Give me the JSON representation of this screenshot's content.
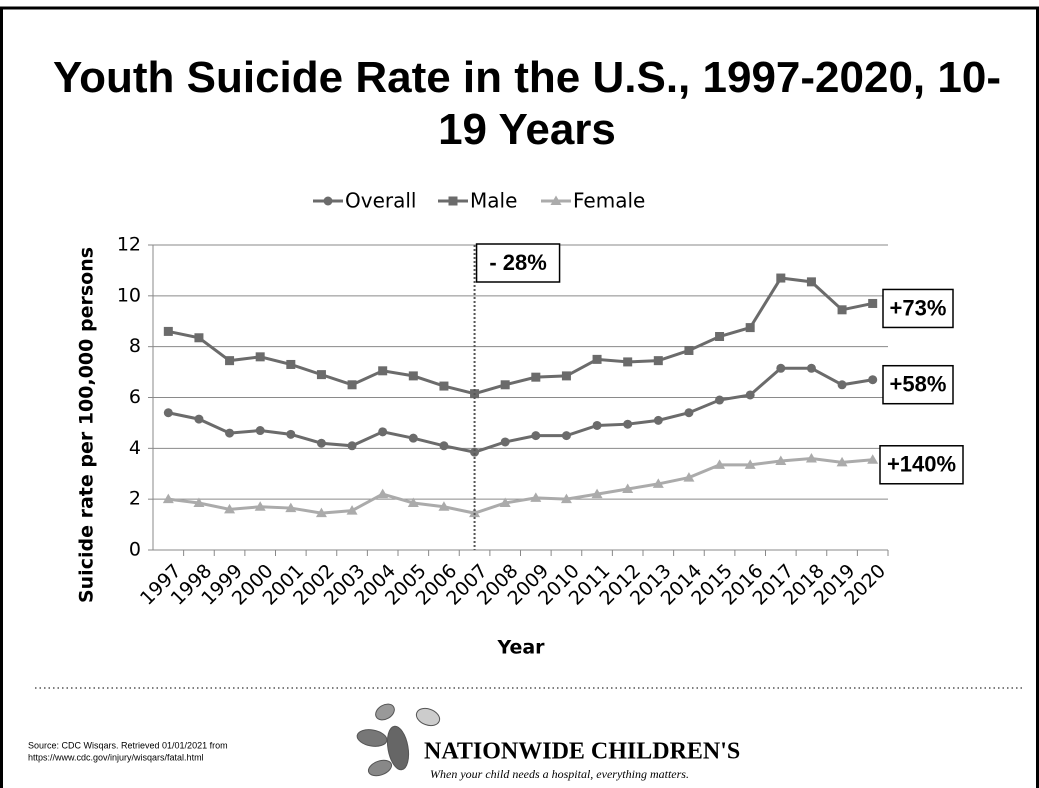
{
  "chart_data": {
    "type": "line",
    "title": "Youth Suicide Rate in the U.S., 1997-2020, 10-19 Years",
    "x_label": "Year",
    "y_label": "Suicide rate per 100,000 persons",
    "categories": [
      "1997",
      "1998",
      "1999",
      "2000",
      "2001",
      "2002",
      "2003",
      "2004",
      "2005",
      "2006",
      "2007",
      "2008",
      "2009",
      "2010",
      "2011",
      "2012",
      "2013",
      "2014",
      "2015",
      "2016",
      "2017",
      "2018",
      "2019",
      "2020"
    ],
    "series": [
      {
        "name": "Overall",
        "color": "#6b6b6b",
        "marker": "circle",
        "values": [
          5.4,
          5.15,
          4.6,
          4.7,
          4.55,
          4.2,
          4.1,
          4.65,
          4.4,
          4.1,
          3.85,
          4.25,
          4.5,
          4.5,
          4.9,
          4.95,
          5.1,
          5.4,
          5.9,
          6.1,
          7.15,
          7.15,
          6.5,
          6.7
        ]
      },
      {
        "name": "Male",
        "color": "#6b6b6b",
        "marker": "square",
        "values": [
          8.6,
          8.35,
          7.45,
          7.6,
          7.3,
          6.9,
          6.5,
          7.05,
          6.85,
          6.45,
          6.15,
          6.5,
          6.8,
          6.85,
          7.5,
          7.4,
          7.45,
          7.85,
          8.4,
          8.75,
          10.7,
          10.55,
          9.45,
          9.7
        ]
      },
      {
        "name": "Female",
        "color": "#ababab",
        "marker": "triangle",
        "values": [
          2.0,
          1.85,
          1.6,
          1.7,
          1.65,
          1.45,
          1.55,
          2.2,
          1.85,
          1.7,
          1.45,
          1.85,
          2.05,
          2.0,
          2.2,
          2.4,
          2.6,
          2.85,
          3.35,
          3.35,
          3.5,
          3.6,
          3.45,
          3.55
        ]
      }
    ],
    "ylim": [
      0,
      12
    ],
    "yticks": [
      0,
      2,
      4,
      6,
      8,
      10,
      12
    ],
    "grid": true,
    "annotations": [
      {
        "text": "- 28%",
        "x": "2007"
      },
      {
        "text": "+73%",
        "series": "Male"
      },
      {
        "text": "+58%",
        "series": "Overall"
      },
      {
        "text": "+140%",
        "series": "Female"
      }
    ]
  },
  "footer": {
    "source": [
      "Source: CDC Wisqars. Retrieved 01/01/2021 from",
      "https://www.cdc.gov/injury/wisqars/fatal.html"
    ],
    "logo_name": "NATIONWIDE CHILDREN'S",
    "tagline": "When your child needs a hospital, everything matters."
  }
}
